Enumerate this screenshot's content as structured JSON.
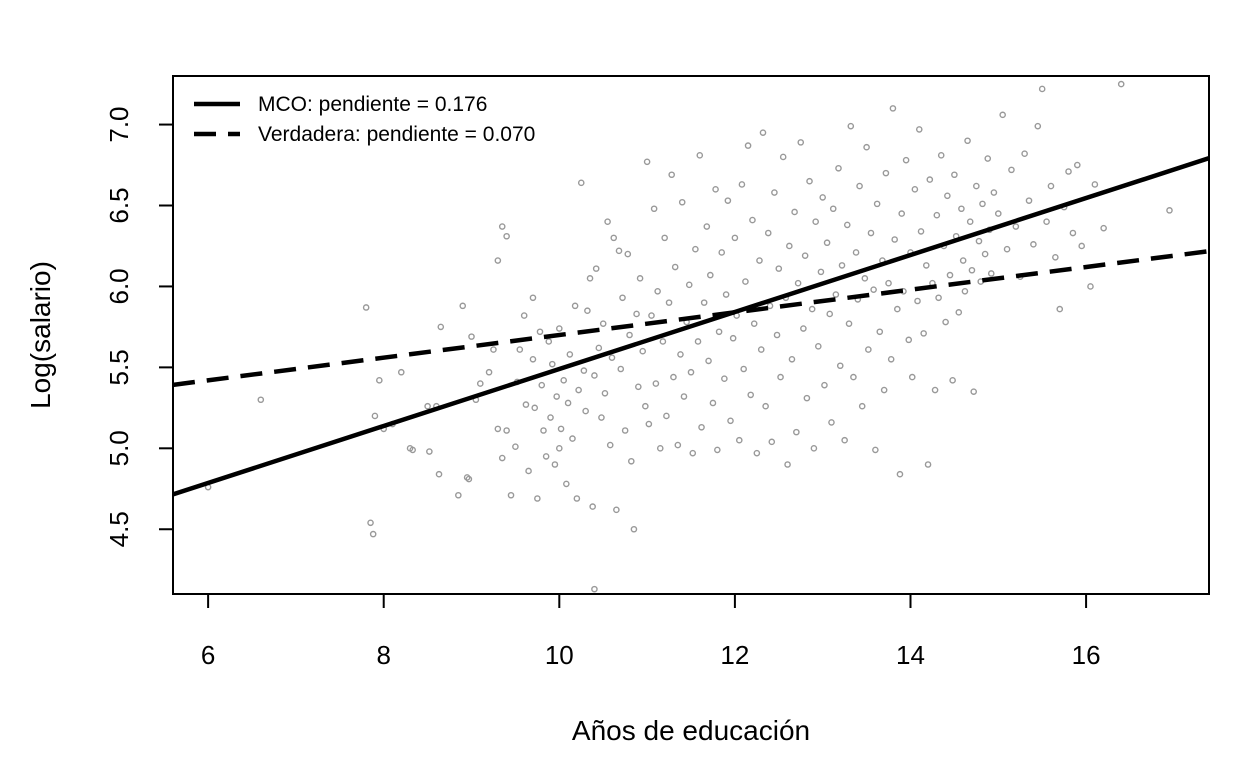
{
  "chart_data": {
    "type": "scatter",
    "title": "",
    "xlabel": "Años de educación",
    "ylabel": "Log(salario)",
    "xlim": [
      5.6,
      17.4
    ],
    "ylim": [
      4.1,
      7.3
    ],
    "x_ticks": [
      "6",
      "8",
      "10",
      "12",
      "14",
      "16"
    ],
    "y_ticks": [
      "4.5",
      "5.0",
      "5.5",
      "6.0",
      "6.5",
      "7.0"
    ],
    "grid": false,
    "legend_position": "top-left",
    "point_color": "#999999",
    "line_color": "#000000",
    "lines": [
      {
        "name": "MCO: pendiente = 0.176",
        "style": "solid",
        "slope": 0.176,
        "intercept": 3.73
      },
      {
        "name": "Verdadera: pendiente = 0.070",
        "style": "dashed",
        "slope": 0.07,
        "intercept": 5.0
      }
    ],
    "points": [
      [
        6.0,
        4.76
      ],
      [
        6.6,
        5.3
      ],
      [
        7.8,
        5.87
      ],
      [
        7.85,
        4.54
      ],
      [
        7.88,
        4.47
      ],
      [
        7.9,
        5.2
      ],
      [
        7.95,
        5.42
      ],
      [
        8.0,
        5.12
      ],
      [
        8.1,
        5.15
      ],
      [
        8.2,
        5.47
      ],
      [
        8.3,
        5.0
      ],
      [
        8.33,
        4.99
      ],
      [
        8.5,
        5.26
      ],
      [
        8.52,
        4.98
      ],
      [
        8.6,
        5.26
      ],
      [
        8.63,
        4.84
      ],
      [
        8.65,
        5.75
      ],
      [
        8.85,
        4.71
      ],
      [
        8.9,
        5.88
      ],
      [
        8.95,
        4.82
      ],
      [
        8.97,
        4.81
      ],
      [
        9.0,
        5.69
      ],
      [
        9.05,
        5.3
      ],
      [
        9.1,
        5.4
      ],
      [
        9.2,
        5.47
      ],
      [
        9.25,
        5.61
      ],
      [
        9.3,
        5.12
      ],
      [
        9.3,
        6.16
      ],
      [
        9.35,
        6.37
      ],
      [
        9.35,
        4.94
      ],
      [
        9.4,
        5.11
      ],
      [
        9.4,
        6.31
      ],
      [
        9.45,
        4.71
      ],
      [
        9.5,
        5.01
      ],
      [
        9.52,
        5.41
      ],
      [
        9.55,
        5.61
      ],
      [
        9.6,
        5.82
      ],
      [
        9.62,
        5.27
      ],
      [
        9.65,
        4.86
      ],
      [
        9.7,
        5.93
      ],
      [
        9.7,
        5.55
      ],
      [
        9.72,
        5.25
      ],
      [
        9.75,
        4.69
      ],
      [
        9.78,
        5.72
      ],
      [
        9.8,
        5.39
      ],
      [
        9.82,
        5.11
      ],
      [
        9.85,
        4.95
      ],
      [
        9.88,
        5.66
      ],
      [
        9.9,
        5.19
      ],
      [
        9.92,
        5.52
      ],
      [
        9.95,
        4.9
      ],
      [
        9.97,
        5.32
      ],
      [
        10.0,
        5.74
      ],
      [
        10.0,
        5.0
      ],
      [
        10.02,
        5.12
      ],
      [
        10.05,
        5.42
      ],
      [
        10.08,
        4.78
      ],
      [
        10.1,
        5.28
      ],
      [
        10.12,
        5.58
      ],
      [
        10.15,
        5.06
      ],
      [
        10.18,
        5.88
      ],
      [
        10.2,
        4.69
      ],
      [
        10.22,
        5.36
      ],
      [
        10.25,
        6.64
      ],
      [
        10.28,
        5.48
      ],
      [
        10.3,
        5.23
      ],
      [
        10.32,
        5.85
      ],
      [
        10.35,
        6.05
      ],
      [
        10.38,
        4.64
      ],
      [
        10.4,
        5.45
      ],
      [
        10.4,
        4.13
      ],
      [
        10.42,
        6.11
      ],
      [
        10.45,
        5.62
      ],
      [
        10.48,
        5.19
      ],
      [
        10.5,
        5.77
      ],
      [
        10.52,
        5.34
      ],
      [
        10.55,
        6.4
      ],
      [
        10.58,
        5.02
      ],
      [
        10.6,
        5.56
      ],
      [
        10.62,
        6.3
      ],
      [
        10.65,
        4.62
      ],
      [
        10.68,
        6.22
      ],
      [
        10.7,
        5.49
      ],
      [
        10.72,
        5.93
      ],
      [
        10.75,
        5.11
      ],
      [
        10.78,
        6.2
      ],
      [
        10.8,
        5.7
      ],
      [
        10.82,
        4.92
      ],
      [
        10.85,
        4.5
      ],
      [
        10.88,
        5.83
      ],
      [
        10.9,
        5.38
      ],
      [
        10.92,
        6.05
      ],
      [
        10.95,
        5.6
      ],
      [
        10.98,
        5.26
      ],
      [
        11.0,
        6.77
      ],
      [
        11.02,
        5.15
      ],
      [
        11.05,
        5.82
      ],
      [
        11.08,
        6.48
      ],
      [
        11.1,
        5.4
      ],
      [
        11.12,
        5.97
      ],
      [
        11.15,
        5.0
      ],
      [
        11.18,
        5.66
      ],
      [
        11.2,
        6.3
      ],
      [
        11.22,
        5.2
      ],
      [
        11.25,
        5.9
      ],
      [
        11.28,
        6.69
      ],
      [
        11.3,
        5.44
      ],
      [
        11.32,
        6.12
      ],
      [
        11.35,
        5.02
      ],
      [
        11.38,
        5.58
      ],
      [
        11.4,
        6.52
      ],
      [
        11.42,
        5.32
      ],
      [
        11.45,
        5.78
      ],
      [
        11.48,
        6.01
      ],
      [
        11.5,
        5.47
      ],
      [
        11.52,
        4.97
      ],
      [
        11.55,
        6.23
      ],
      [
        11.58,
        5.66
      ],
      [
        11.6,
        6.81
      ],
      [
        11.62,
        5.13
      ],
      [
        11.65,
        5.9
      ],
      [
        11.68,
        6.37
      ],
      [
        11.7,
        5.54
      ],
      [
        11.72,
        6.07
      ],
      [
        11.75,
        5.28
      ],
      [
        11.78,
        6.6
      ],
      [
        11.8,
        4.99
      ],
      [
        11.82,
        5.72
      ],
      [
        11.85,
        6.21
      ],
      [
        11.88,
        5.43
      ],
      [
        11.9,
        5.95
      ],
      [
        11.92,
        6.53
      ],
      [
        11.95,
        5.17
      ],
      [
        11.98,
        5.68
      ],
      [
        12.0,
        6.3
      ],
      [
        12.02,
        5.82
      ],
      [
        12.05,
        5.05
      ],
      [
        12.08,
        6.63
      ],
      [
        12.1,
        5.49
      ],
      [
        12.12,
        6.03
      ],
      [
        12.15,
        6.87
      ],
      [
        12.18,
        5.33
      ],
      [
        12.2,
        6.41
      ],
      [
        12.22,
        5.77
      ],
      [
        12.25,
        4.97
      ],
      [
        12.28,
        6.16
      ],
      [
        12.3,
        5.61
      ],
      [
        12.32,
        6.95
      ],
      [
        12.35,
        5.26
      ],
      [
        12.38,
        6.33
      ],
      [
        12.4,
        5.88
      ],
      [
        12.42,
        5.04
      ],
      [
        12.45,
        6.58
      ],
      [
        12.48,
        5.7
      ],
      [
        12.5,
        6.11
      ],
      [
        12.52,
        5.44
      ],
      [
        12.55,
        6.8
      ],
      [
        12.58,
        5.93
      ],
      [
        12.6,
        4.9
      ],
      [
        12.62,
        6.25
      ],
      [
        12.65,
        5.55
      ],
      [
        12.68,
        6.46
      ],
      [
        12.7,
        5.1
      ],
      [
        12.72,
        6.02
      ],
      [
        12.75,
        6.89
      ],
      [
        12.78,
        5.74
      ],
      [
        12.8,
        6.19
      ],
      [
        12.82,
        5.31
      ],
      [
        12.85,
        6.65
      ],
      [
        12.88,
        5.86
      ],
      [
        12.9,
        5.0
      ],
      [
        12.92,
        6.4
      ],
      [
        12.95,
        5.63
      ],
      [
        12.98,
        6.09
      ],
      [
        13.0,
        6.55
      ],
      [
        13.02,
        5.39
      ],
      [
        13.05,
        6.27
      ],
      [
        13.08,
        5.83
      ],
      [
        13.1,
        5.16
      ],
      [
        13.12,
        6.48
      ],
      [
        13.15,
        5.95
      ],
      [
        13.18,
        6.73
      ],
      [
        13.2,
        5.51
      ],
      [
        13.22,
        6.13
      ],
      [
        13.25,
        5.05
      ],
      [
        13.28,
        6.38
      ],
      [
        13.3,
        5.77
      ],
      [
        13.32,
        6.99
      ],
      [
        13.35,
        5.44
      ],
      [
        13.38,
        6.21
      ],
      [
        13.4,
        5.92
      ],
      [
        13.42,
        6.62
      ],
      [
        13.45,
        5.26
      ],
      [
        13.48,
        6.05
      ],
      [
        13.5,
        6.86
      ],
      [
        13.52,
        5.61
      ],
      [
        13.55,
        6.33
      ],
      [
        13.58,
        5.98
      ],
      [
        13.6,
        4.99
      ],
      [
        13.62,
        6.51
      ],
      [
        13.65,
        5.72
      ],
      [
        13.68,
        6.16
      ],
      [
        13.7,
        5.36
      ],
      [
        13.72,
        6.7
      ],
      [
        13.75,
        6.02
      ],
      [
        13.78,
        5.55
      ],
      [
        13.8,
        7.1
      ],
      [
        13.82,
        6.29
      ],
      [
        13.85,
        5.86
      ],
      [
        13.88,
        4.84
      ],
      [
        13.9,
        6.45
      ],
      [
        13.92,
        5.97
      ],
      [
        13.95,
        6.78
      ],
      [
        13.98,
        5.67
      ],
      [
        14.0,
        6.21
      ],
      [
        14.02,
        5.44
      ],
      [
        14.05,
        6.6
      ],
      [
        14.08,
        5.91
      ],
      [
        14.1,
        6.97
      ],
      [
        14.12,
        6.34
      ],
      [
        14.15,
        5.71
      ],
      [
        14.18,
        6.13
      ],
      [
        14.2,
        4.9
      ],
      [
        14.22,
        6.66
      ],
      [
        14.25,
        6.02
      ],
      [
        14.28,
        5.36
      ],
      [
        14.3,
        6.44
      ],
      [
        14.32,
        5.93
      ],
      [
        14.35,
        6.81
      ],
      [
        14.38,
        6.25
      ],
      [
        14.4,
        5.78
      ],
      [
        14.42,
        6.56
      ],
      [
        14.45,
        6.07
      ],
      [
        14.48,
        5.42
      ],
      [
        14.5,
        6.69
      ],
      [
        14.52,
        6.31
      ],
      [
        14.55,
        5.84
      ],
      [
        14.58,
        6.48
      ],
      [
        14.6,
        6.16
      ],
      [
        14.62,
        5.97
      ],
      [
        14.65,
        6.9
      ],
      [
        14.68,
        6.4
      ],
      [
        14.7,
        6.1
      ],
      [
        14.72,
        5.35
      ],
      [
        14.75,
        6.62
      ],
      [
        14.78,
        6.28
      ],
      [
        14.8,
        6.03
      ],
      [
        14.82,
        6.51
      ],
      [
        14.85,
        6.2
      ],
      [
        14.88,
        6.79
      ],
      [
        14.9,
        6.35
      ],
      [
        14.92,
        6.08
      ],
      [
        14.95,
        6.58
      ],
      [
        15.0,
        6.45
      ],
      [
        15.05,
        7.06
      ],
      [
        15.1,
        6.23
      ],
      [
        15.15,
        6.72
      ],
      [
        15.2,
        6.37
      ],
      [
        15.25,
        6.06
      ],
      [
        15.3,
        6.82
      ],
      [
        15.35,
        6.53
      ],
      [
        15.4,
        6.26
      ],
      [
        15.45,
        6.99
      ],
      [
        15.5,
        7.22
      ],
      [
        15.55,
        6.4
      ],
      [
        15.6,
        6.62
      ],
      [
        15.65,
        6.18
      ],
      [
        15.7,
        5.86
      ],
      [
        15.75,
        6.49
      ],
      [
        15.8,
        6.71
      ],
      [
        15.85,
        6.33
      ],
      [
        15.9,
        6.75
      ],
      [
        15.95,
        6.25
      ],
      [
        16.05,
        6.0
      ],
      [
        16.1,
        6.63
      ],
      [
        16.2,
        6.36
      ],
      [
        16.4,
        7.25
      ],
      [
        16.95,
        6.47
      ]
    ]
  }
}
